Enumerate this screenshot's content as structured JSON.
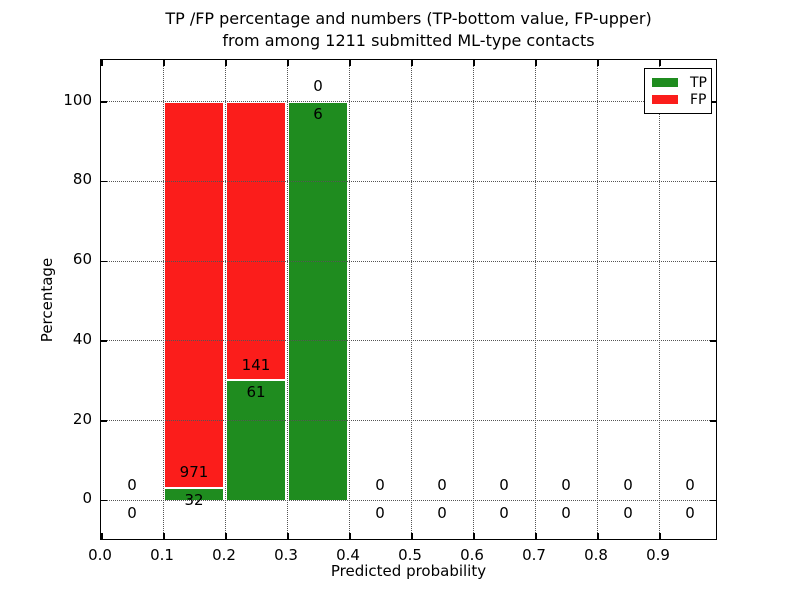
{
  "title": {
    "line1": "TP /FP percentage and numbers (TP-bottom value, FP-upper)",
    "line2": "from among 1211 submitted ML-type contacts"
  },
  "axes_labels": {
    "xlabel": "Predicted probability",
    "ylabel": "Percentage"
  },
  "legend": {
    "items": [
      {
        "label": "TP",
        "color": "#1f8c1f"
      },
      {
        "label": "FP",
        "color": "#fb1d1b"
      }
    ]
  },
  "colors": {
    "tp": "#1f8c1f",
    "fp": "#fb1d1b",
    "grid": "#555555",
    "axis": "#000000",
    "background": "#ffffff"
  },
  "chart_data": {
    "type": "bar",
    "stacked": true,
    "title": "TP /FP percentage and numbers (TP-bottom value, FP-upper)\nfrom among 1211 submitted ML-type contacts",
    "xlabel": "Predicted probability",
    "ylabel": "Percentage",
    "total_contacts": 1211,
    "xlim": [
      0.0,
      1.0
    ],
    "ylim": [
      -10.3,
      110.3
    ],
    "x_tick_labels": [
      "0.0",
      "0.1",
      "0.2",
      "0.3",
      "0.4",
      "0.5",
      "0.6",
      "0.7",
      "0.8",
      "0.9"
    ],
    "x_tick_values": [
      0.0,
      0.1,
      0.2,
      0.3,
      0.4,
      0.5,
      0.6,
      0.7,
      0.8,
      0.9
    ],
    "y_tick_values": [
      0,
      20,
      40,
      60,
      80,
      100
    ],
    "grid": "dotted",
    "legend_position": "upper right",
    "legend_entries": [
      "TP",
      "FP"
    ],
    "bins": [
      {
        "range": [
          0.0,
          0.1
        ],
        "tp": 0,
        "fp": 0,
        "tp_pct": 0,
        "fp_pct": 0
      },
      {
        "range": [
          0.1,
          0.2
        ],
        "tp": 32,
        "fp": 971,
        "tp_pct": 3.19,
        "fp_pct": 96.81
      },
      {
        "range": [
          0.2,
          0.3
        ],
        "tp": 61,
        "fp": 141,
        "tp_pct": 30.2,
        "fp_pct": 69.8
      },
      {
        "range": [
          0.3,
          0.4
        ],
        "tp": 6,
        "fp": 0,
        "tp_pct": 100,
        "fp_pct": 0
      },
      {
        "range": [
          0.4,
          0.5
        ],
        "tp": 0,
        "fp": 0,
        "tp_pct": 0,
        "fp_pct": 0
      },
      {
        "range": [
          0.5,
          0.6
        ],
        "tp": 0,
        "fp": 0,
        "tp_pct": 0,
        "fp_pct": 0
      },
      {
        "range": [
          0.6,
          0.7
        ],
        "tp": 0,
        "fp": 0,
        "tp_pct": 0,
        "fp_pct": 0
      },
      {
        "range": [
          0.7,
          0.8
        ],
        "tp": 0,
        "fp": 0,
        "tp_pct": 0,
        "fp_pct": 0
      },
      {
        "range": [
          0.8,
          0.9
        ],
        "tp": 0,
        "fp": 0,
        "tp_pct": 0,
        "fp_pct": 0
      },
      {
        "range": [
          0.9,
          1.0
        ],
        "tp": 0,
        "fp": 0,
        "tp_pct": 0,
        "fp_pct": 0
      }
    ]
  }
}
